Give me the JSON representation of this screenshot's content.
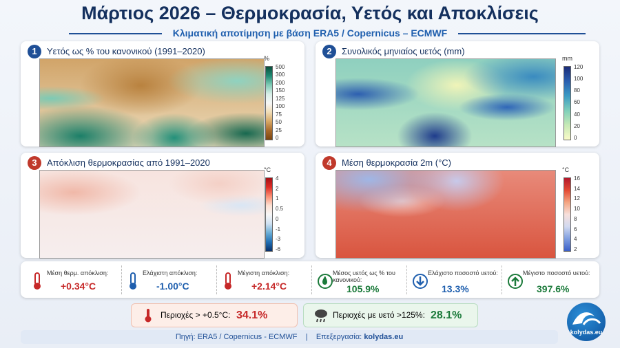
{
  "header": {
    "title": "Μάρτιος 2026 – Θερμοκρασία, Υετός και Αποκλίσεις",
    "subtitle": "Κλιματική αποτίμηση με βάση ERA5 / Copernicus – ECMWF"
  },
  "panels": [
    {
      "number": "1",
      "title": "Υετός ως % του κανονικού (1991–2020)",
      "unit": "%",
      "scale_labels": [
        "500",
        "300",
        "200",
        "150",
        "125",
        "100",
        "75",
        "50",
        "25",
        "0"
      ]
    },
    {
      "number": "2",
      "title": "Συνολικός μηνιαίος υετός (mm)",
      "unit": "mm",
      "scale_labels": [
        "120",
        "100",
        "80",
        "60",
        "40",
        "20",
        "0"
      ]
    },
    {
      "number": "3",
      "title": "Απόκλιση θερμοκρασίας από 1991–2020",
      "unit": "°C",
      "scale_labels": [
        "4",
        "2",
        "1",
        "0.5",
        "0",
        "-1",
        "-3",
        "-6"
      ]
    },
    {
      "number": "4",
      "title": "Μέση θερμοκρασία 2m (°C)",
      "unit": "°C",
      "scale_labels": [
        "16",
        "14",
        "12",
        "10",
        "8",
        "6",
        "4",
        "2"
      ]
    }
  ],
  "stats": [
    {
      "label": "Μέση θερμ. απόκλιση:",
      "value": "+0.34°C"
    },
    {
      "label": "Ελάχιστη απόκλιση:",
      "value": "-1.00°C"
    },
    {
      "label": "Μέγιστη απόκλιση:",
      "value": "+2.14°C"
    },
    {
      "label": "Μέσος υετός ως % του κανονικού:",
      "value": "105.9%"
    },
    {
      "label": "Ελάχιστο ποσοστό υετού:",
      "value": "13.3%"
    },
    {
      "label": "Μέγιστο ποσοστό υετού:",
      "value": "397.6%"
    }
  ],
  "highlights": [
    {
      "label": "Περιοχές > +0.5°C:",
      "value": "34.1%"
    },
    {
      "label": "Περιοχές με υετό >125%:",
      "value": "28.1%"
    }
  ],
  "footer": {
    "source": "Πηγή: ERA5 / Copernicus - ECMWF",
    "separator": "|",
    "processing_label": "Επεξεργασία:",
    "processing_value": "kolydas.eu"
  },
  "logo": "kolydas.eu"
}
